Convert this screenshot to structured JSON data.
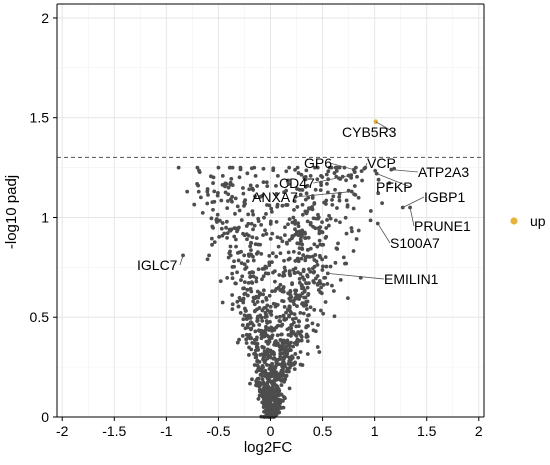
{
  "chart_data": {
    "type": "scatter",
    "title": "",
    "xlabel": "log2FC",
    "ylabel": "-log10 padj",
    "xlim": [
      -2.05,
      2.05
    ],
    "ylim": [
      0,
      2.07
    ],
    "x_ticks": [
      -2,
      -1.5,
      -1,
      -0.5,
      0,
      0.5,
      1,
      1.5,
      2
    ],
    "x_tick_labels": [
      "-2",
      "-1.5",
      "-1",
      "-0.5",
      "0",
      "0.5",
      "1",
      "1.5",
      "2"
    ],
    "y_ticks": [
      0,
      0.5,
      1,
      1.5,
      2
    ],
    "y_tick_labels": [
      "0",
      "0.5",
      "1",
      "1.5",
      "2"
    ],
    "grid": true,
    "threshold_line": {
      "y": 1.301,
      "style": "dashed"
    },
    "legend": {
      "position": "right",
      "entries": [
        {
          "label": "up",
          "color": "#E7B33B"
        }
      ]
    },
    "colors": {
      "background_points": "#4D4D4D",
      "up": "#E7B33B",
      "grid": "#E6E6E6",
      "threshold": "#666666"
    },
    "series": [
      {
        "name": "up",
        "points": [
          {
            "x": 1.01,
            "y": 1.48
          }
        ]
      }
    ],
    "background_distribution": {
      "description_shape": "volcano",
      "center_x": 0.0,
      "count": 1400
    },
    "labeled_points": [
      {
        "label": "CYB5R3",
        "x": 1.01,
        "y": 1.48
      },
      {
        "label": "GP6",
        "x": 0.8,
        "y": 1.24
      },
      {
        "label": "VCP",
        "x": 0.91,
        "y": 1.25
      },
      {
        "label": "ATP2A3",
        "x": 1.16,
        "y": 1.24
      },
      {
        "label": "CD47",
        "x": 0.75,
        "y": 1.21
      },
      {
        "label": "PFKP",
        "x": 1.02,
        "y": 1.22
      },
      {
        "label": "IGBP1",
        "x": 1.27,
        "y": 1.05
      },
      {
        "label": "ANXA7",
        "x": 0.78,
        "y": 1.13
      },
      {
        "label": "PRUNE1",
        "x": 1.34,
        "y": 1.05
      },
      {
        "label": "S100A7",
        "x": 1.03,
        "y": 0.97
      },
      {
        "label": "IGLC7",
        "x": -0.84,
        "y": 0.81
      },
      {
        "label": "EMILIN1",
        "x": 0.55,
        "y": 0.72
      }
    ]
  }
}
